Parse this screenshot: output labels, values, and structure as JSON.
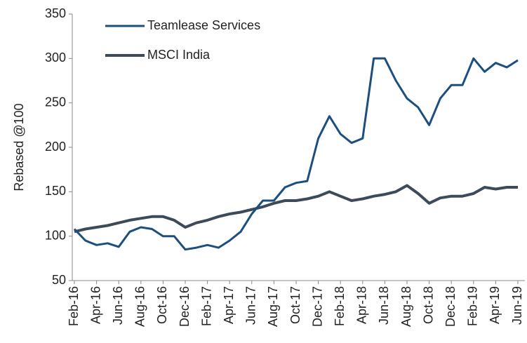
{
  "chart_data": {
    "type": "line",
    "y_label": "Rebased @100",
    "categories": [
      "Feb-16",
      null,
      "Apr-16",
      null,
      "Jun-16",
      null,
      "Aug-16",
      null,
      "Oct-16",
      null,
      "Dec-16",
      null,
      "Feb-17",
      null,
      "Apr-17",
      null,
      "Jun-17",
      null,
      "Aug-17",
      null,
      "Oct-17",
      null,
      "Dec-17",
      null,
      "Feb-18",
      null,
      "Apr-18",
      null,
      "Jun-18",
      null,
      "Aug-18",
      null,
      "Oct-18",
      null,
      "Dec-18",
      null,
      "Feb-19",
      null,
      "Apr-19",
      null,
      "Jun-19"
    ],
    "series": [
      {
        "name": "Teamlease Services",
        "color": "#1c4e80",
        "values": [
          108,
          95,
          90,
          92,
          88,
          105,
          110,
          108,
          100,
          100,
          85,
          87,
          90,
          87,
          95,
          105,
          125,
          140,
          140,
          155,
          160,
          162,
          210,
          235,
          215,
          205,
          210,
          300,
          300,
          275,
          255,
          245,
          225,
          255,
          270,
          270,
          300,
          285,
          295,
          290,
          298
        ]
      },
      {
        "name": "MSCI India",
        "color": "#3d4a5a",
        "values": [
          105,
          108,
          110,
          112,
          115,
          118,
          120,
          122,
          122,
          118,
          110,
          115,
          118,
          122,
          125,
          127,
          130,
          133,
          137,
          140,
          140,
          142,
          145,
          150,
          145,
          140,
          142,
          145,
          147,
          150,
          157,
          148,
          137,
          143,
          145,
          145,
          148,
          155,
          153,
          155,
          155
        ]
      }
    ],
    "ylim": [
      50,
      350
    ],
    "yticks": [
      50,
      100,
      150,
      200,
      250,
      300,
      350
    ],
    "legend": "top-left",
    "grid": false
  }
}
